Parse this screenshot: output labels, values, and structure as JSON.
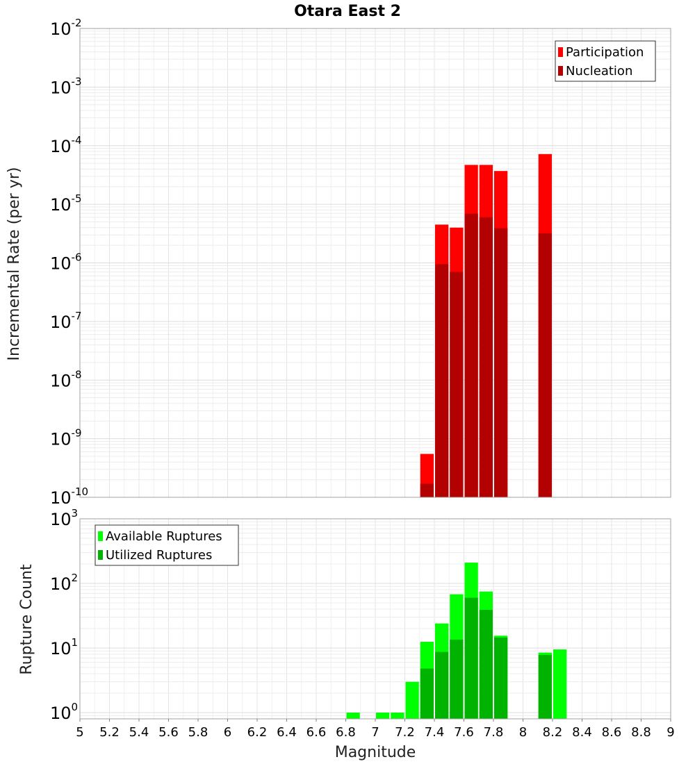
{
  "chart_data": [
    {
      "type": "bar",
      "title": "Otara East 2",
      "ylabel": "Incremental Rate (per yr)",
      "xlabel": "",
      "yscale": "log",
      "ylim": [
        1e-10,
        0.01
      ],
      "xlim": [
        5,
        9
      ],
      "bin_width": 0.1,
      "legend_position": "top-right",
      "x": [
        7.35,
        7.45,
        7.55,
        7.65,
        7.75,
        7.85,
        8.15
      ],
      "series": [
        {
          "name": "Participation",
          "color": "#ff0000",
          "values": [
            5.5e-10,
            4.5e-06,
            4e-06,
            4.7e-05,
            4.7e-05,
            3.7e-05,
            7.2e-05
          ]
        },
        {
          "name": "Nucleation",
          "color": "#b30000",
          "values": [
            1.7e-10,
            9.5e-07,
            7e-07,
            6.9e-06,
            6e-06,
            3.9e-06,
            3.2e-06
          ]
        }
      ],
      "ytick_labels": [
        {
          "base": "10",
          "exp": "-10"
        },
        {
          "base": "10",
          "exp": "-9"
        },
        {
          "base": "10",
          "exp": "-8"
        },
        {
          "base": "10",
          "exp": "-7"
        },
        {
          "base": "10",
          "exp": "-6"
        },
        {
          "base": "10",
          "exp": "-5"
        },
        {
          "base": "10",
          "exp": "-4"
        },
        {
          "base": "10",
          "exp": "-3"
        },
        {
          "base": "10",
          "exp": "-2"
        }
      ]
    },
    {
      "type": "bar",
      "title": "",
      "ylabel": "Rupture Count",
      "xlabel": "Magnitude",
      "yscale": "log",
      "ylim": [
        0.8,
        1000
      ],
      "xlim": [
        5,
        9
      ],
      "bin_width": 0.1,
      "legend_position": "top-left",
      "x": [
        6.85,
        7.05,
        7.15,
        7.25,
        7.35,
        7.45,
        7.55,
        7.65,
        7.75,
        7.85,
        8.15,
        8.25
      ],
      "series": [
        {
          "name": "Available Ruptures",
          "color": "#00ff00",
          "values": [
            1,
            1,
            1,
            3,
            12.5,
            24,
            68,
            210,
            75,
            15.5,
            8.5,
            9.5
          ]
        },
        {
          "name": "Utilized Ruptures",
          "color": "#00b300",
          "values": [
            0,
            0,
            0,
            0,
            4.8,
            8.7,
            13.5,
            60,
            39,
            14.5,
            7.8,
            0
          ]
        }
      ],
      "ytick_labels": [
        {
          "base": "10",
          "exp": "0"
        },
        {
          "base": "10",
          "exp": "1"
        },
        {
          "base": "10",
          "exp": "2"
        },
        {
          "base": "10",
          "exp": "3"
        }
      ],
      "xtick_labels": [
        "5",
        "5.2",
        "5.4",
        "5.6",
        "5.8",
        "6",
        "6.2",
        "6.4",
        "6.6",
        "6.8",
        "7",
        "7.2",
        "7.4",
        "7.6",
        "7.8",
        "8",
        "8.2",
        "8.4",
        "8.6",
        "8.8",
        "9"
      ]
    }
  ]
}
